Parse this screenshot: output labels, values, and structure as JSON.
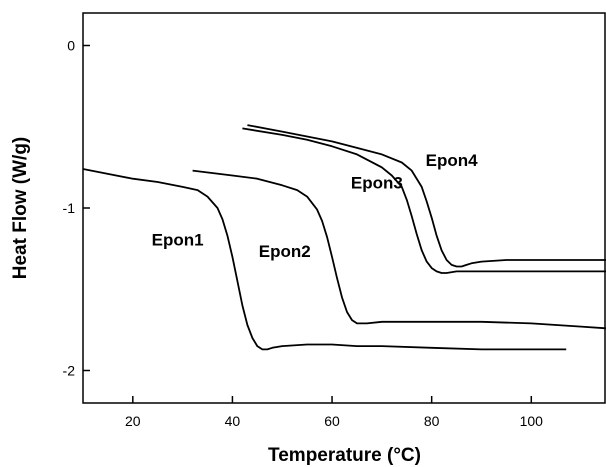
{
  "chart_data": {
    "type": "line",
    "title": "",
    "xlabel": "Temperature (°C)",
    "ylabel": "Heat Flow (W/g)",
    "xlim": [
      10,
      115
    ],
    "ylim": [
      -2.2,
      0.2
    ],
    "xticks": [
      20,
      40,
      60,
      80,
      100
    ],
    "yticks": [
      0,
      -1,
      -2
    ],
    "xtick_labels": [
      "20",
      "40",
      "60",
      "80",
      "100"
    ],
    "ytick_labels": [
      "0",
      "-1",
      "-2"
    ],
    "grid": false,
    "legend": "none",
    "series": [
      {
        "name": "Epon1",
        "label_at": [
          29,
          -1.23
        ],
        "x": [
          10,
          15,
          20,
          25,
          30,
          33,
          35,
          37,
          38,
          39,
          40,
          41,
          42,
          43,
          44,
          45,
          46,
          47,
          48,
          50,
          55,
          60,
          65,
          70,
          80,
          90,
          100,
          107
        ],
        "y": [
          -0.76,
          -0.79,
          -0.82,
          -0.84,
          -0.87,
          -0.89,
          -0.93,
          -1.0,
          -1.07,
          -1.17,
          -1.3,
          -1.45,
          -1.6,
          -1.72,
          -1.8,
          -1.85,
          -1.87,
          -1.87,
          -1.86,
          -1.85,
          -1.84,
          -1.84,
          -1.85,
          -1.85,
          -1.86,
          -1.87,
          -1.87,
          -1.87
        ]
      },
      {
        "name": "Epon2",
        "label_at": [
          50.5,
          -1.3
        ],
        "x": [
          32,
          40,
          45,
          50,
          53,
          55,
          57,
          58,
          59,
          60,
          61,
          62,
          63,
          64,
          65,
          66,
          67,
          70,
          80,
          90,
          100,
          110,
          115
        ],
        "y": [
          -0.77,
          -0.8,
          -0.82,
          -0.86,
          -0.89,
          -0.93,
          -1.01,
          -1.08,
          -1.18,
          -1.3,
          -1.43,
          -1.55,
          -1.64,
          -1.69,
          -1.71,
          -1.71,
          -1.71,
          -1.7,
          -1.7,
          -1.7,
          -1.71,
          -1.73,
          -1.74
        ]
      },
      {
        "name": "Epon3",
        "label_at": [
          69,
          -0.88
        ],
        "x": [
          42,
          50,
          55,
          60,
          65,
          70,
          72,
          74,
          75,
          76,
          77,
          78,
          79,
          80,
          81,
          82,
          83,
          85,
          90,
          100,
          110,
          115
        ],
        "y": [
          -0.51,
          -0.55,
          -0.58,
          -0.62,
          -0.67,
          -0.75,
          -0.8,
          -0.87,
          -0.95,
          -1.05,
          -1.16,
          -1.26,
          -1.33,
          -1.37,
          -1.39,
          -1.4,
          -1.4,
          -1.39,
          -1.39,
          -1.39,
          -1.39,
          -1.39
        ]
      },
      {
        "name": "Epon4",
        "label_at": [
          84,
          -0.74
        ],
        "x": [
          43,
          50,
          55,
          60,
          65,
          70,
          74,
          76,
          78,
          79,
          80,
          81,
          82,
          83,
          84,
          85,
          86,
          87,
          88,
          90,
          95,
          100,
          110,
          115
        ],
        "y": [
          -0.49,
          -0.53,
          -0.56,
          -0.59,
          -0.63,
          -0.67,
          -0.72,
          -0.77,
          -0.87,
          -0.96,
          -1.06,
          -1.17,
          -1.26,
          -1.32,
          -1.35,
          -1.36,
          -1.36,
          -1.35,
          -1.34,
          -1.33,
          -1.32,
          -1.32,
          -1.32,
          -1.32
        ]
      }
    ]
  }
}
